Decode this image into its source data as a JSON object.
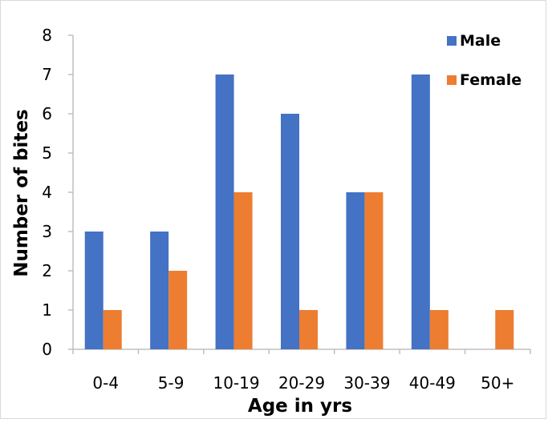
{
  "chart_data": {
    "type": "bar",
    "categories": [
      "0-4",
      "5-9",
      "10-19",
      "20-29",
      "30-39",
      "40-49",
      "50+"
    ],
    "series": [
      {
        "name": "Male",
        "values": [
          3,
          3,
          7,
          6,
          4,
          7,
          0
        ],
        "color": "#4472C4"
      },
      {
        "name": "Female",
        "values": [
          1,
          2,
          4,
          1,
          4,
          1,
          1
        ],
        "color": "#ED7D31"
      }
    ],
    "xlabel": "Age in yrs",
    "ylabel": "Number of bites",
    "ylim": [
      0,
      8
    ],
    "yticks": [
      0,
      1,
      2,
      3,
      4,
      5,
      6,
      7,
      8
    ],
    "grid": false,
    "legend_position": "top-right"
  }
}
